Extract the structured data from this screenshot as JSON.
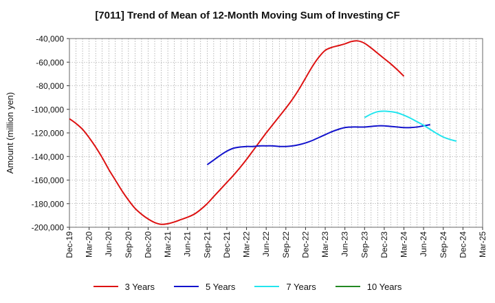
{
  "chart_data": {
    "type": "line",
    "title": "[7011]  Trend of Mean of 12-Month Moving Sum of Investing CF",
    "xlabel": "",
    "ylabel": "Amount (million yen)",
    "ylim": [
      -200000,
      -40000
    ],
    "yticks": [
      -40000,
      -60000,
      -80000,
      -100000,
      -120000,
      -140000,
      -160000,
      -180000,
      -200000
    ],
    "ytick_labels": [
      "-40,000",
      "-60,000",
      "-80,000",
      "-100,000",
      "-120,000",
      "-140,000",
      "-160,000",
      "-180,000",
      "-200,000"
    ],
    "x_tick_labels": [
      "Dec-19",
      "Mar-20",
      "Jun-20",
      "Sep-20",
      "Dec-20",
      "Mar-21",
      "Jun-21",
      "Sep-21",
      "Dec-21",
      "Mar-22",
      "Jun-22",
      "Sep-22",
      "Dec-22",
      "Mar-23",
      "Jun-23",
      "Sep-23",
      "Dec-23",
      "Mar-24",
      "Jun-24",
      "Sep-24",
      "Dec-24",
      "Mar-25"
    ],
    "grid": true,
    "legend_position": "bottom",
    "series": [
      {
        "name": "3 Years",
        "color": "#dd1111",
        "start_month_index": 0,
        "values": [
          -108000,
          -112000,
          -117000,
          -124000,
          -132000,
          -141000,
          -151000,
          -160000,
          -169000,
          -177000,
          -184000,
          -189000,
          -193000,
          -196000,
          -197500,
          -197000,
          -195500,
          -193500,
          -191500,
          -189000,
          -185000,
          -180000,
          -174000,
          -168000,
          -162000,
          -156000,
          -149500,
          -142500,
          -135000,
          -127500,
          -120000,
          -113000,
          -106000,
          -99000,
          -91500,
          -83000,
          -73500,
          -64000,
          -56000,
          -50000,
          -47500,
          -46000,
          -44500,
          -42500,
          -42000,
          -44000,
          -48000,
          -52500,
          -57000,
          -61500,
          -66500,
          -72000
        ]
      },
      {
        "name": "5 Years",
        "color": "#1111cc",
        "start_month_index": 21,
        "values": [
          -147000,
          -143000,
          -139000,
          -135500,
          -133000,
          -132000,
          -131500,
          -131500,
          -131000,
          -131000,
          -131000,
          -131500,
          -131500,
          -131000,
          -130000,
          -128500,
          -126500,
          -124000,
          -121500,
          -119000,
          -117000,
          -115500,
          -115000,
          -115000,
          -115000,
          -114500,
          -114000,
          -114000,
          -114500,
          -115000,
          -115500,
          -115500,
          -115000,
          -114000,
          -113000
        ]
      },
      {
        "name": "7 Years",
        "color": "#22e5ee",
        "start_month_index": 45,
        "values": [
          -107000,
          -104000,
          -102000,
          -101500,
          -102000,
          -103000,
          -105000,
          -107500,
          -110500,
          -113500,
          -117000,
          -120500,
          -123500,
          -125500,
          -127000
        ]
      },
      {
        "name": "10 Years",
        "color": "#228822",
        "start_month_index": 0,
        "values": []
      }
    ]
  }
}
